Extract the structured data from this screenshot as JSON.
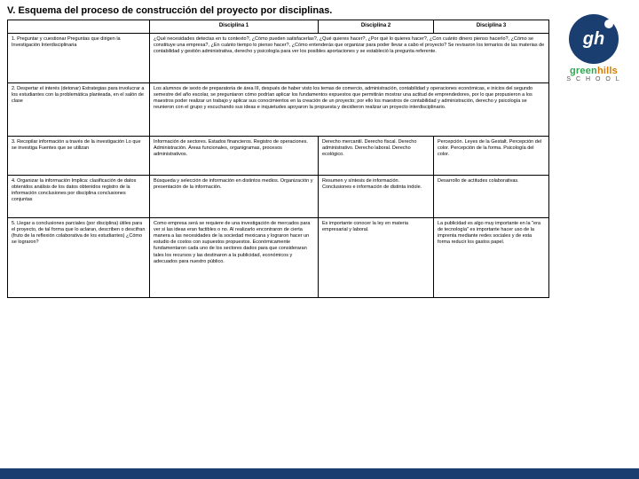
{
  "title": "V. Esquema del proceso de construcción del proyecto por disciplinas.",
  "headers": {
    "h1": "Disciplina 1",
    "h2": "Disciplina 2",
    "h3": "Disciplina 3"
  },
  "rows": {
    "r1": {
      "label": "1. Preguntar y cuestionar\n    Preguntas que dirigen la Investigación Interdisciplinaria",
      "c2": "¿Qué necesidades detectas en tu contexto?, ¿Cómo pueden satisfacerlas?, ¿Qué quieres hacer?, ¿Por qué lo quieres hacer?, ¿Con cuánto dinero pienso hacerlo?, ¿Cómo se constituye una empresa?, ¿En cuánto tiempo lo pienso hacer?, ¿Cómo entenderás que organizar para poder llevar a cabo el proyecto?\nSe revisaron los temarios de las materias de contabilidad y gestión administrativa, derecho y psicología para ver los posibles aportaciones y se estableció la pregunta referente.",
      "c3": "",
      "c4": ""
    },
    "r2": {
      "label": "2. Despertar el interés (detonar)\n    Estrategias para involucrar a los estudiantes con la problemática planteada, en el salón de clase",
      "c2": "Los alumnos de sexto de preparatoria de área III, después de haber visto los temas de comercio, administración, contabilidad y operaciones económicas, e inicios del segundo semestre del año escolar, se preguntaron cómo podrían aplicar los fundamentos expuestos que permitirán mostrar una actitud de emprendedores, por lo que propusieron a los maestros poder realizar un trabajo y aplicar sus conocimientos en la creación de un proyecto; por ello los maestros de contabilidad y administración, derecho y psicología se reunieron con el grupo y escuchando sus ideas e inquietudes apoyaron la propuesta y decidieron realizar un proyecto interdisciplinario.",
      "c3": "",
      "c4": ""
    },
    "r3": {
      "label": "3. Recopilar información a través de la investigación\n    Lo que se investiga\n    Fuentes que se utilizan",
      "c2": "Información de sectores. Estados financieros. Registro de operaciones. Administración. Áreas funcionales, organigramas, procesos administrativos.",
      "c3": "Derecho mercantil. Derecho fiscal. Derecho administrativo. Derecho laboral. Derecho ecológico.",
      "c4": "Percepción. Leyes de la Gestalt. Percepción del color. Percepción de la forma. Psicología del color."
    },
    "r4": {
      "label": "4. Organizar la información\n    Implica:\n    clasificación de datos obtenidos\n    análisis de los datos obtenidos          registro de la información\n    conclusiones por disciplina\n    conclusiones conjuntas",
      "c2": "Búsqueda y selección de información en distintos medios. Organización y presentación de la información.",
      "c3": "Resumen y síntesis de información. Conclusiones e información de distinta índole.",
      "c4": "Desarrollo de actitudes colaborativas."
    },
    "r5": {
      "label": "5. Llegar a conclusiones parciales\n    (por disciplina) útiles para el\n    proyecto, de tal forma que lo\n    aclaran, describen o descifran\n    (fruto de la reflexión colaborativa\n    de los estudiantes)\n    ¿Cómo se lograron?",
      "c2": "Como empresa será se requiere de una investigación de mercados para ver si las ideas eran factibles o no. Al realizarlo encontraron de cierta manera a las necesidades de la sociedad mexicana y lograron hacer un estudio de costos con supuestos propuestos. Económicamente fundamentaron cada uno de los sectores dados para que consideraran tales los recursos y las destinaron a la publicidad, económicos y adecuados para nuestro público.",
      "c3": "Es importante conocer la ley en materia empresarial y laboral.",
      "c4": "La publicidad es algo muy importante en la \"era de tecnología\" es importante hacer uso de la imprenta mediante redes sociales y de esta forma reducir los gastos papel."
    }
  },
  "logo": {
    "mono": "gh",
    "brand_a": "green",
    "brand_b": "hills",
    "sub": "S C H O O L"
  }
}
